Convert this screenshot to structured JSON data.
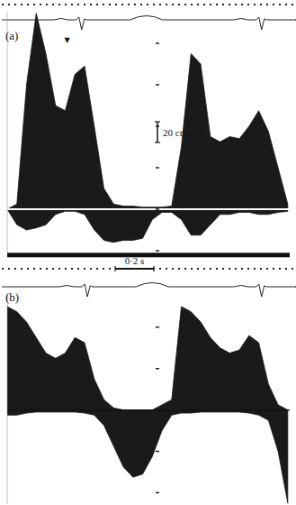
{
  "chart_data": [
    {
      "type": "area",
      "title": "(a)",
      "x": [
        0,
        0.05,
        0.1,
        0.15,
        0.2,
        0.25,
        0.3,
        0.35,
        0.4,
        0.45,
        0.5,
        0.55,
        0.6,
        0.65,
        0.7,
        0.75,
        0.8,
        0.85,
        0.9,
        0.95,
        1.0,
        1.05,
        1.1,
        1.15,
        1.2,
        1.25,
        1.3,
        1.35,
        1.4,
        1.45
      ],
      "series": [
        {
          "color": "#1a1a1a",
          "values": [
            0,
            5,
            120,
            189,
            150,
            100,
            95,
            130,
            138,
            80,
            20,
            5,
            3,
            3,
            2,
            2,
            2,
            3,
            60,
            150,
            140,
            70,
            65,
            70,
            68,
            80,
            95,
            75,
            40,
            5
          ]
        },
        {
          "color": "#1a1a1a",
          "values": [
            0,
            -15,
            -20,
            -18,
            -15,
            -5,
            -2,
            -2,
            -5,
            -20,
            -30,
            -32,
            -30,
            -30,
            -28,
            -10,
            -3,
            -3,
            -10,
            -25,
            -25,
            -15,
            -5,
            -5,
            -3,
            -3,
            -5,
            -5,
            -3,
            -2
          ]
        }
      ],
      "xlim": [
        0,
        1.46
      ],
      "ylim": [
        -42,
        190
      ],
      "yticks": [
        -40,
        0,
        40,
        80,
        120,
        160
      ],
      "tick_labels": false,
      "scale_bars": [
        {
          "axis": "y",
          "value": 20,
          "label": "20 cm.s⁻¹"
        }
      ],
      "ecg_r_x": [
        0.38,
        1.31
      ],
      "annotations": [
        {
          "text": "▼",
          "x": 0.31,
          "y": 161
        }
      ]
    },
    {
      "type": "area",
      "title": "(b)",
      "x": [
        0,
        0.05,
        0.1,
        0.15,
        0.2,
        0.25,
        0.3,
        0.35,
        0.4,
        0.45,
        0.5,
        0.55,
        0.6,
        0.65,
        0.7,
        0.75,
        0.8,
        0.85,
        0.9,
        0.95,
        1.0,
        1.05,
        1.1,
        1.15,
        1.2,
        1.25,
        1.3,
        1.35,
        1.4,
        1.45
      ],
      "series": [
        {
          "color": "#1a1a1a",
          "values": [
            100,
            95,
            85,
            70,
            55,
            50,
            55,
            70,
            65,
            30,
            10,
            2,
            0,
            0,
            0,
            0,
            5,
            10,
            100,
            95,
            85,
            70,
            60,
            55,
            58,
            72,
            65,
            25,
            5,
            0
          ]
        },
        {
          "color": "#1a1a1a",
          "values": [
            -5,
            -5,
            -3,
            -2,
            -2,
            -2,
            -2,
            -2,
            -3,
            -5,
            -15,
            -35,
            -55,
            -65,
            -62,
            -45,
            -20,
            -5,
            -3,
            -3,
            -2,
            -2,
            -2,
            -2,
            -2,
            -3,
            -5,
            -10,
            -40,
            -90
          ]
        }
      ],
      "xlim": [
        0,
        1.46
      ],
      "ylim": [
        -91,
        113
      ],
      "yticks": [
        -80,
        -40,
        0,
        40,
        80
      ],
      "tick_labels": false,
      "scale_bars": [
        {
          "axis": "x",
          "value": 0.2,
          "label": "0·2 s"
        }
      ],
      "ecg_r_x": [
        0.41,
        1.31
      ]
    }
  ]
}
